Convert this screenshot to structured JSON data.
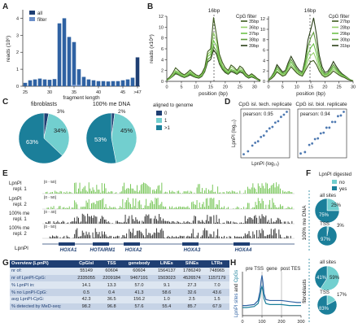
{
  "panel_letters": [
    "A",
    "B",
    "C",
    "D",
    "E",
    "F",
    "G",
    "H"
  ],
  "colors": {
    "dark_blue": "#1f3f73",
    "mid_blue": "#2f62a3",
    "teal": "#1b7f9a",
    "light_teal": "#72cfcf",
    "green": "#6cc24a",
    "dark_green": "#3d5a1e",
    "black": "#222222",
    "light_blue": "#6a8ec9"
  },
  "panelA": {
    "legend": [
      "all",
      "filter"
    ],
    "ylabel": "reads (10⁶)",
    "xlabel": "fragment length",
    "yticks": [
      "0",
      "1",
      "2",
      "3",
      "4"
    ],
    "xticks": [
      "25",
      "30",
      "35",
      "40",
      "45",
      ">47"
    ]
  },
  "panelB": {
    "peak_label_left": "16bp",
    "peak_label_right": "16bp",
    "ylabel": "reads (x10⁴)",
    "xlabel": "position (bp)",
    "legend_title": "CpG filter",
    "legend_left": [
      "35bp",
      "36bp",
      "37bp",
      "38bp",
      "39bp"
    ],
    "legend_right": [
      "27bp",
      "28bp",
      "29bp",
      "30bp",
      "31bp"
    ],
    "xticks": [
      "0",
      "5",
      "10",
      "15",
      "20",
      "25",
      "30"
    ],
    "yticks_left": [
      "0",
      "2",
      "4",
      "6",
      "8",
      "10",
      "12"
    ],
    "yticks_right": [
      "0",
      "2",
      "4",
      "6",
      "8",
      "10",
      "12"
    ]
  },
  "panelC": {
    "title_left": "fibroblasts",
    "title_right": "100% me DNA",
    "top_left": "3%",
    "top_right": "2%",
    "left_pct_dark": "63%",
    "left_pct_light": "34%",
    "right_pct_dark": "53%",
    "right_pct_light": "45%",
    "legend_title": "aligned to genome",
    "legend": [
      "0",
      "1",
      ">1"
    ]
  },
  "panelD": {
    "title_left": "CpG isl. tech. replicate",
    "title_right": "CpG isl. biol. replicate",
    "pearson_left": "pearson: 0.95",
    "pearson_right": "pearson: 0.94",
    "ylabel": "LpnPI (log₁₀)",
    "xlabel": "LpnPI (log₁₀)"
  },
  "panelE": {
    "tracks": [
      {
        "label": "LpnPI",
        "label2": "repl. 1",
        "range": "[0 - 50]"
      },
      {
        "label": "LpnPI",
        "label2": "repl. 2",
        "range": "[0 - 50]"
      },
      {
        "label": "100% me",
        "label2": "repl. 1",
        "range": "[0 - 40]"
      },
      {
        "label": "100% me",
        "label2": "repl. 2",
        "range": "[0 - 50]"
      }
    ],
    "genes": [
      "HOXA1",
      "HOTAIRM1",
      "HOXA2",
      "HOXA3",
      "HOXA4"
    ],
    "bottom_label": "LpnPI"
  },
  "panelF": {
    "legend_title": "LpnPI digested",
    "legend": [
      "no",
      "yes"
    ],
    "side_top": "100% me DNA",
    "side_bottom": "fibroblasts",
    "pies": [
      {
        "title": "all sites",
        "pct_no": "25%",
        "pct_yes": "75%"
      },
      {
        "title": "TSS",
        "pct_no": "3%",
        "pct_yes": "97%"
      },
      {
        "title": "all sites",
        "pct_no": "59%",
        "pct_yes": "41%"
      },
      {
        "title": "TSS",
        "pct_no": "17%",
        "pct_yes": "83%"
      }
    ]
  },
  "panelG": {
    "headers": [
      "Overview (LpnPI)",
      "CpGIsl",
      "TSS",
      "genebody",
      "LINEs",
      "SINEs",
      "LTRs"
    ],
    "rows": [
      [
        "nr of:",
        "55149",
        "60604",
        "60604",
        "1564137",
        "1786249",
        "748965"
      ],
      [
        "nr of LpnPI-CpG:",
        "2335055",
        "2209184",
        "9467191",
        "1503023",
        "4526574",
        "1157179"
      ],
      [
        "% LpnPI in:",
        "14.1",
        "13.3",
        "57.0",
        "9.1",
        "27.3",
        "7.0"
      ],
      [
        "% no LpnPI-CpG:",
        "0.5",
        "0.4",
        "41.3",
        "58.6",
        "32.6",
        "43.6"
      ],
      [
        "avg LpnPI-CpG:",
        "42.3",
        "36.5",
        "156.2",
        "1.0",
        "2.5",
        "1.5"
      ],
      [
        "% detected by MeD-seq:",
        "98.2",
        "96.8",
        "57.6",
        "55.4",
        "85.7",
        "67.9"
      ]
    ]
  },
  "panelH": {
    "label_pre": "pre TSS",
    "label_gene": "gene",
    "label_post": "post TES",
    "ylabel_a": "LpnPI sites",
    "ylabel_and": " and ",
    "ylabel_b": "CpGs",
    "xticks": [
      "0",
      "100",
      "200",
      "300"
    ]
  },
  "chart_data": [
    {
      "type": "bar",
      "panel": "A",
      "categories": [
        "25",
        "26",
        "27",
        "28",
        "29",
        "30",
        "31",
        "32",
        "33",
        "34",
        "35",
        "36",
        "37",
        "38",
        "39",
        "40",
        "41",
        "42",
        "43",
        "44",
        "45",
        "46",
        "47",
        ">47"
      ],
      "series": [
        {
          "name": "all",
          "values": [
            0.2,
            0.35,
            0.4,
            0.45,
            0.4,
            0.38,
            0.42,
            3.7,
            4.0,
            2.9,
            2.6,
            1.0,
            0.55,
            0.4,
            0.35,
            0.3,
            0.3,
            0.28,
            0.3,
            0.3,
            0.35,
            0.4,
            0.5,
            1.7
          ]
        },
        {
          "name": "filter",
          "values": [
            0,
            0,
            0,
            0,
            0,
            0,
            0,
            0,
            0,
            0,
            0.1,
            0.1,
            0,
            0,
            0,
            0,
            0,
            0,
            0,
            0,
            0,
            0,
            0,
            0
          ]
        }
      ],
      "xlabel": "fragment length",
      "ylabel": "reads (10⁶)",
      "ylim": [
        0,
        4.5
      ]
    },
    {
      "type": "line",
      "panel": "B-left",
      "x": [
        0,
        1,
        2,
        3,
        4,
        5,
        6,
        7,
        8,
        9,
        10,
        11,
        12,
        13,
        14,
        15,
        16,
        17,
        18,
        19,
        20,
        21,
        22,
        23,
        24,
        25,
        26,
        27,
        28,
        29,
        30,
        31,
        32
      ],
      "series": [
        {
          "name": "35bp",
          "values": [
            0.3,
            0.8,
            1.5,
            2.5,
            2.0,
            1.5,
            1.2,
            1.6,
            2.1,
            1.6,
            1.2,
            1.0,
            1.5,
            2.6,
            5.5,
            6.0,
            11.8,
            8.5,
            5.0,
            3.5,
            2.5,
            2.0,
            3.0,
            2.6,
            2.0,
            2.8,
            2.4,
            1.5,
            1.0,
            1.4,
            1.0,
            0.5,
            0.2
          ]
        },
        {
          "name": "36bp",
          "values": [
            0.3,
            0.7,
            1.2,
            2.0,
            1.7,
            1.4,
            1.0,
            1.4,
            1.8,
            1.4,
            1.0,
            0.9,
            1.3,
            2.4,
            5.0,
            5.5,
            9.0,
            7.5,
            4.5,
            3.0,
            2.2,
            1.8,
            2.6,
            2.3,
            1.8,
            2.4,
            2.1,
            1.3,
            0.9,
            1.2,
            0.9,
            0.4,
            0.2
          ]
        },
        {
          "name": "37bp",
          "values": [
            0.2,
            0.6,
            1.1,
            1.8,
            1.5,
            1.2,
            0.9,
            1.2,
            1.6,
            1.2,
            0.9,
            0.8,
            1.2,
            2.2,
            4.6,
            5.0,
            7.5,
            6.5,
            4.0,
            2.7,
            2.0,
            1.6,
            2.2,
            2.0,
            1.6,
            2.1,
            1.9,
            1.2,
            0.8,
            1.0,
            0.8,
            0.4,
            0.2
          ]
        },
        {
          "name": "38bp",
          "values": [
            0.2,
            0.5,
            1.0,
            1.6,
            1.3,
            1.0,
            0.8,
            1.0,
            1.4,
            1.0,
            0.8,
            0.7,
            1.0,
            2.0,
            4.0,
            4.5,
            6.5,
            5.5,
            3.5,
            2.4,
            1.8,
            1.4,
            2.0,
            1.8,
            1.4,
            1.9,
            1.7,
            1.0,
            0.7,
            0.9,
            0.7,
            0.3,
            0.1
          ]
        },
        {
          "name": "39bp",
          "values": [
            0.2,
            0.5,
            0.9,
            1.4,
            1.2,
            0.9,
            0.7,
            0.9,
            1.2,
            0.9,
            0.7,
            0.6,
            0.9,
            1.8,
            3.6,
            4.0,
            5.8,
            5.0,
            3.2,
            2.2,
            1.6,
            1.3,
            1.8,
            1.6,
            1.3,
            1.7,
            1.5,
            0.9,
            0.6,
            0.8,
            0.6,
            0.3,
            0.1
          ]
        }
      ],
      "xlabel": "position (bp)",
      "ylabel": "reads (x10⁴)",
      "ylim": [
        0,
        12
      ],
      "xlim": [
        0,
        32
      ]
    },
    {
      "type": "line",
      "panel": "B-right",
      "x": [
        0,
        1,
        2,
        3,
        4,
        5,
        6,
        7,
        8,
        9,
        10,
        11,
        12,
        13,
        14,
        15,
        16,
        17,
        18,
        19,
        20,
        21,
        22,
        23,
        24,
        25,
        26,
        27,
        28,
        29,
        30
      ],
      "series": [
        {
          "name": "27bp",
          "values": [
            0.2,
            0.5,
            1.0,
            1.8,
            1.4,
            1.0,
            1.2,
            2.0,
            2.8,
            2.2,
            1.6,
            1.2,
            1.0,
            2.0,
            3.0,
            3.8,
            4.0,
            3.2,
            2.0,
            1.2,
            0.8,
            1.0,
            1.4,
            2.0,
            1.6,
            1.2,
            0.9,
            0.7,
            0.4,
            0.2,
            0.1
          ]
        },
        {
          "name": "28bp",
          "values": [
            0.2,
            0.6,
            1.2,
            2.0,
            1.6,
            1.2,
            1.4,
            2.4,
            3.2,
            2.5,
            1.8,
            1.4,
            1.2,
            2.4,
            4.0,
            5.0,
            5.5,
            4.2,
            2.5,
            1.5,
            1.0,
            1.2,
            1.7,
            2.4,
            1.9,
            1.4,
            1.0,
            0.8,
            0.5,
            0.2,
            0.1
          ]
        },
        {
          "name": "29bp",
          "values": [
            0.2,
            0.7,
            1.4,
            2.4,
            1.9,
            1.4,
            1.6,
            2.8,
            3.7,
            2.9,
            2.1,
            1.6,
            1.4,
            3.0,
            5.2,
            6.5,
            7.2,
            5.4,
            3.2,
            1.8,
            1.2,
            1.4,
            2.0,
            2.8,
            2.2,
            1.6,
            1.2,
            0.9,
            0.6,
            0.3,
            0.1
          ]
        },
        {
          "name": "30bp",
          "values": [
            0.3,
            0.8,
            1.6,
            2.8,
            2.2,
            1.6,
            1.8,
            3.2,
            4.2,
            3.3,
            2.4,
            1.8,
            1.6,
            3.6,
            6.6,
            8.4,
            9.4,
            7.0,
            4.0,
            2.2,
            1.4,
            1.6,
            2.3,
            3.2,
            2.5,
            1.8,
            1.3,
            1.0,
            0.6,
            0.3,
            0.1
          ]
        },
        {
          "name": "31bp",
          "values": [
            0.3,
            0.9,
            1.8,
            3.2,
            2.5,
            1.8,
            2.1,
            3.6,
            4.8,
            3.8,
            2.8,
            2.1,
            1.8,
            4.2,
            8.0,
            10.0,
            12.2,
            9.0,
            5.0,
            2.8,
            1.7,
            1.9,
            2.7,
            3.8,
            2.9,
            2.1,
            1.5,
            1.1,
            0.7,
            0.3,
            0.1
          ]
        }
      ],
      "xlabel": "position (bp)",
      "ylabel": "reads (x10⁴)",
      "ylim": [
        0,
        12.5
      ],
      "xlim": [
        0,
        30
      ]
    },
    {
      "type": "pie",
      "panel": "C-left",
      "title": "fibroblasts",
      "categories": [
        "0",
        "1",
        ">1"
      ],
      "values": [
        3,
        34,
        63
      ]
    },
    {
      "type": "pie",
      "panel": "C-right",
      "title": "100% me DNA",
      "categories": [
        "0",
        "1",
        ">1"
      ],
      "values": [
        2,
        45,
        53
      ]
    },
    {
      "type": "scatter",
      "panel": "D-left",
      "title": "CpG isl. tech. replicate",
      "xlabel": "LpnPI (log₁₀)",
      "ylabel": "LpnPI (log₁₀)",
      "annotation": "pearson: 0.95",
      "x": [
        0.2,
        0.5,
        0.8,
        1.0,
        1.2,
        1.4,
        1.6,
        1.8,
        2.0,
        2.2,
        2.4,
        2.6,
        2.8,
        3.0,
        3.2
      ],
      "y": [
        0.25,
        0.45,
        0.85,
        1.05,
        1.15,
        1.45,
        1.55,
        1.85,
        2.05,
        2.15,
        2.45,
        2.55,
        2.85,
        3.0,
        3.2
      ]
    },
    {
      "type": "scatter",
      "panel": "D-right",
      "title": "CpG isl. biol. replicate",
      "xlabel": "LpnPI (log₁₀)",
      "ylabel": "LpnPI (log₁₀)",
      "annotation": "pearson: 0.94",
      "x": [
        0.2,
        0.5,
        0.8,
        1.0,
        1.2,
        1.4,
        1.6,
        1.8,
        2.0,
        2.2,
        2.4,
        2.6,
        2.8,
        3.0,
        3.2
      ],
      "y": [
        0.3,
        0.4,
        0.9,
        1.0,
        1.3,
        1.35,
        1.7,
        1.75,
        2.1,
        2.1,
        2.5,
        2.5,
        2.9,
        2.95,
        3.2
      ]
    },
    {
      "type": "pie",
      "panel": "F",
      "categories": [
        "no",
        "yes"
      ],
      "series": [
        {
          "name": "100% me DNA all sites",
          "values": [
            25,
            75
          ]
        },
        {
          "name": "100% me DNA TSS",
          "values": [
            3,
            97
          ]
        },
        {
          "name": "fibroblasts all sites",
          "values": [
            59,
            41
          ]
        },
        {
          "name": "fibroblasts TSS",
          "values": [
            17,
            83
          ]
        }
      ]
    },
    {
      "type": "line",
      "panel": "H",
      "x": [
        0,
        20,
        40,
        60,
        80,
        90,
        95,
        100,
        105,
        110,
        120,
        140,
        160,
        180,
        200,
        220,
        240,
        260,
        280,
        300
      ],
      "series": [
        {
          "name": "LpnPI sites",
          "values": [
            1.0,
            1.0,
            1.05,
            1.1,
            1.5,
            2.4,
            3.4,
            4.0,
            3.3,
            2.2,
            1.6,
            1.5,
            1.5,
            1.5,
            1.5,
            1.45,
            1.4,
            1.35,
            1.3,
            1.3
          ]
        },
        {
          "name": "CpGs",
          "values": [
            0.8,
            0.8,
            0.85,
            0.9,
            1.2,
            1.9,
            2.6,
            2.9,
            2.5,
            1.7,
            1.2,
            1.1,
            1.1,
            1.1,
            1.1,
            1.05,
            1.0,
            1.0,
            1.0,
            1.0
          ]
        }
      ],
      "xlim": [
        0,
        300
      ]
    }
  ]
}
